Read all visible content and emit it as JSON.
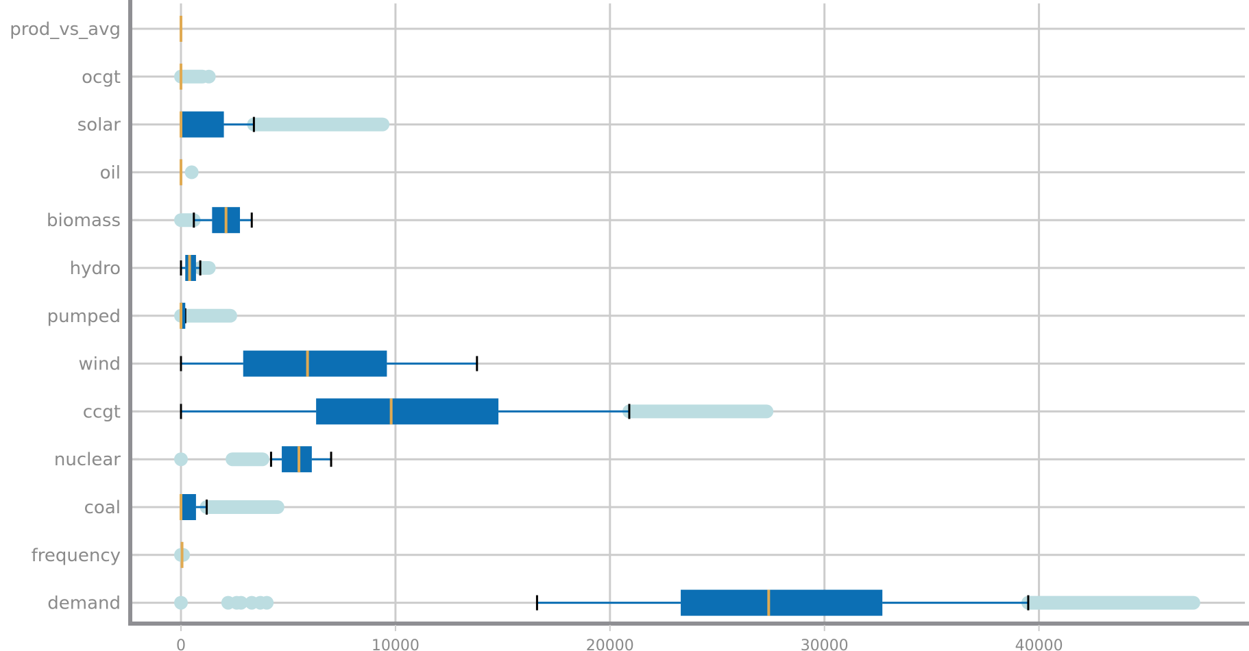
{
  "chart_data": {
    "type": "boxplot",
    "orientation": "horizontal",
    "title": "",
    "xlabel": "",
    "ylabel": "",
    "xlim": [
      -2500,
      49500
    ],
    "x_ticks": [
      0,
      10000,
      20000,
      30000,
      40000
    ],
    "x_tick_labels": [
      "0",
      "10000",
      "20000",
      "30000",
      "40000"
    ],
    "grid": true,
    "colors": {
      "box": "#0c6fb4",
      "whisker": "#0c6fb4",
      "cap": "#000000",
      "median": "#e0aa52",
      "outlier": "#bcdde1",
      "grid": "#cccccc",
      "axis": "#8f8f93"
    },
    "categories": [
      "demand",
      "frequency",
      "coal",
      "nuclear",
      "ccgt",
      "wind",
      "pumped",
      "hydro",
      "biomass",
      "oil",
      "solar",
      "ocgt",
      "prod_vs_avg"
    ],
    "series": [
      {
        "category": "demand",
        "whisker_low": 16600,
        "q1": 23300,
        "median": 27400,
        "q3": 32700,
        "whisker_high": 39500,
        "outlier_points": [
          0,
          2200,
          2600,
          2800,
          3300,
          3700,
          4000
        ],
        "outlier_ranges": [
          [
            39500,
            47200
          ]
        ]
      },
      {
        "category": "frequency",
        "whisker_low": 50,
        "q1": 50,
        "median": 50,
        "q3": 50,
        "whisker_high": 50,
        "outlier_points": [
          0,
          100
        ],
        "outlier_ranges": []
      },
      {
        "category": "coal",
        "whisker_low": 0,
        "q1": 0,
        "median": 0,
        "q3": 700,
        "whisker_high": 1200,
        "outlier_points": [],
        "outlier_ranges": [
          [
            1200,
            4500
          ]
        ]
      },
      {
        "category": "nuclear",
        "whisker_low": 4200,
        "q1": 4700,
        "median": 5500,
        "q3": 6100,
        "whisker_high": 7000,
        "outlier_points": [
          0
        ],
        "outlier_ranges": [
          [
            2400,
            3800
          ]
        ]
      },
      {
        "category": "ccgt",
        "whisker_low": 0,
        "q1": 6300,
        "median": 9800,
        "q3": 14800,
        "whisker_high": 20900,
        "outlier_points": [],
        "outlier_ranges": [
          [
            20900,
            27300
          ]
        ]
      },
      {
        "category": "wind",
        "whisker_low": 0,
        "q1": 2900,
        "median": 5900,
        "q3": 9600,
        "whisker_high": 13800,
        "outlier_points": [],
        "outlier_ranges": []
      },
      {
        "category": "pumped",
        "whisker_low": 0,
        "q1": 0,
        "median": 0,
        "q3": 200,
        "whisker_high": 200,
        "outlier_points": [],
        "outlier_ranges": [
          [
            0,
            2300
          ]
        ]
      },
      {
        "category": "hydro",
        "whisker_low": 0,
        "q1": 200,
        "median": 400,
        "q3": 700,
        "whisker_high": 900,
        "outlier_points": [],
        "outlier_ranges": [
          [
            900,
            1300
          ]
        ]
      },
      {
        "category": "biomass",
        "whisker_low": 600,
        "q1": 1450,
        "median": 2100,
        "q3": 2750,
        "whisker_high": 3300,
        "outlier_points": [],
        "outlier_ranges": [
          [
            0,
            600
          ]
        ]
      },
      {
        "category": "oil",
        "whisker_low": 0,
        "q1": 0,
        "median": 0,
        "q3": 0,
        "whisker_high": 0,
        "outlier_points": [
          500
        ],
        "outlier_ranges": []
      },
      {
        "category": "solar",
        "whisker_low": 0,
        "q1": 0,
        "median": 0,
        "q3": 2000,
        "whisker_high": 3400,
        "outlier_points": [],
        "outlier_ranges": [
          [
            3400,
            9400
          ]
        ]
      },
      {
        "category": "ocgt",
        "whisker_low": 0,
        "q1": 0,
        "median": 0,
        "q3": 0,
        "whisker_high": 0,
        "outlier_points": [
          1300
        ],
        "outlier_ranges": [
          [
            0,
            1000
          ]
        ]
      },
      {
        "category": "prod_vs_avg",
        "whisker_low": 0,
        "q1": 0,
        "median": 0,
        "q3": 0,
        "whisker_high": 0,
        "outlier_points": [],
        "outlier_ranges": []
      }
    ]
  }
}
